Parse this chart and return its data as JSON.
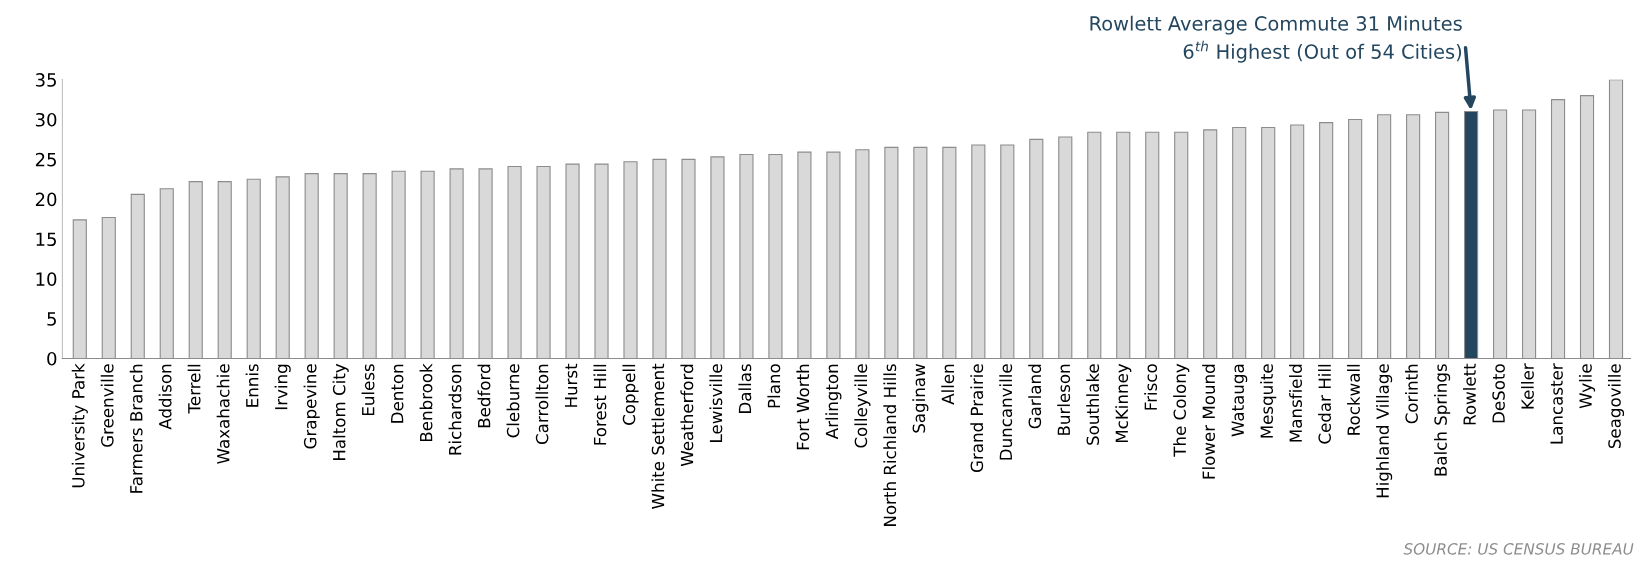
{
  "chart_data": {
    "type": "bar",
    "categories": [
      "University Park",
      "Greenville",
      "Farmers Branch",
      "Addison",
      "Terrell",
      "Waxahachie",
      "Ennis",
      "Irving",
      "Grapevine",
      "Haltom City",
      "Euless",
      "Denton",
      "Benbrook",
      "Richardson",
      "Bedford",
      "Cleburne",
      "Carrollton",
      "Hurst",
      "Forest Hill",
      "Coppell",
      "White Settlement",
      "Weatherford",
      "Lewisville",
      "Dallas",
      "Plano",
      "Fort Worth",
      "Arlington",
      "Colleyville",
      "North Richland Hills",
      "Saginaw",
      "Allen",
      "Grand Prairie",
      "Duncanville",
      "Garland",
      "Burleson",
      "Southlake",
      "McKinney",
      "Frisco",
      "The Colony",
      "Flower Mound",
      "Watauga",
      "Mesquite",
      "Mansfield",
      "Cedar Hill",
      "Rockwall",
      "Highland Village",
      "Corinth",
      "Balch Springs",
      "Rowlett",
      "DeSoto",
      "Keller",
      "Lancaster",
      "Wylie",
      "Seagoville"
    ],
    "values": [
      17.4,
      17.7,
      20.6,
      21.3,
      22.2,
      22.2,
      22.5,
      22.8,
      23.2,
      23.2,
      23.2,
      23.5,
      23.5,
      23.8,
      23.8,
      24.1,
      24.1,
      24.4,
      24.4,
      24.7,
      25.0,
      25.0,
      25.3,
      25.6,
      25.6,
      25.9,
      25.9,
      26.2,
      26.5,
      26.5,
      26.5,
      26.8,
      26.8,
      27.5,
      27.8,
      28.4,
      28.4,
      28.4,
      28.4,
      28.7,
      29.0,
      29.0,
      29.3,
      29.6,
      30.0,
      30.6,
      30.6,
      30.9,
      31,
      31.2,
      31.2,
      32.5,
      33.0,
      35
    ],
    "colors": [
      "#d9d9d9",
      "#d9d9d9",
      "#d9d9d9",
      "#d9d9d9",
      "#d9d9d9",
      "#d9d9d9",
      "#d9d9d9",
      "#d9d9d9",
      "#d9d9d9",
      "#d9d9d9",
      "#d9d9d9",
      "#d9d9d9",
      "#d9d9d9",
      "#d9d9d9",
      "#d9d9d9",
      "#d9d9d9",
      "#d9d9d9",
      "#d9d9d9",
      "#d9d9d9",
      "#d9d9d9",
      "#d9d9d9",
      "#d9d9d9",
      "#d9d9d9",
      "#d9d9d9",
      "#d9d9d9",
      "#d9d9d9",
      "#d9d9d9",
      "#d9d9d9",
      "#d9d9d9",
      "#d9d9d9",
      "#d9d9d9",
      "#d9d9d9",
      "#d9d9d9",
      "#d9d9d9",
      "#d9d9d9",
      "#d9d9d9",
      "#d9d9d9",
      "#d9d9d9",
      "#d9d9d9",
      "#d9d9d9",
      "#d9d9d9",
      "#d9d9d9",
      "#d9d9d9",
      "#d9d9d9",
      "#d9d9d9",
      "#d9d9d9",
      "#d9d9d9",
      "#d9d9d9",
      "#24475f",
      "#d9d9d9",
      "#d9d9d9",
      "#d9d9d9",
      "#d9d9d9",
      "#d9d9d9"
    ],
    "ylim": [
      0,
      35
    ],
    "yticks": [
      0,
      5,
      10,
      15,
      20,
      25,
      30,
      35
    ],
    "grid": false,
    "legend": false,
    "annotations": [
      {
        "text": "Rowlett Average Commute 31 Minutes\n6$^{th}$ Highest (Out of 54 Cities)",
        "x": "Rowlett",
        "y": 31
      },
      "SOURCE: US CENSUS BUREAU"
    ]
  }
}
